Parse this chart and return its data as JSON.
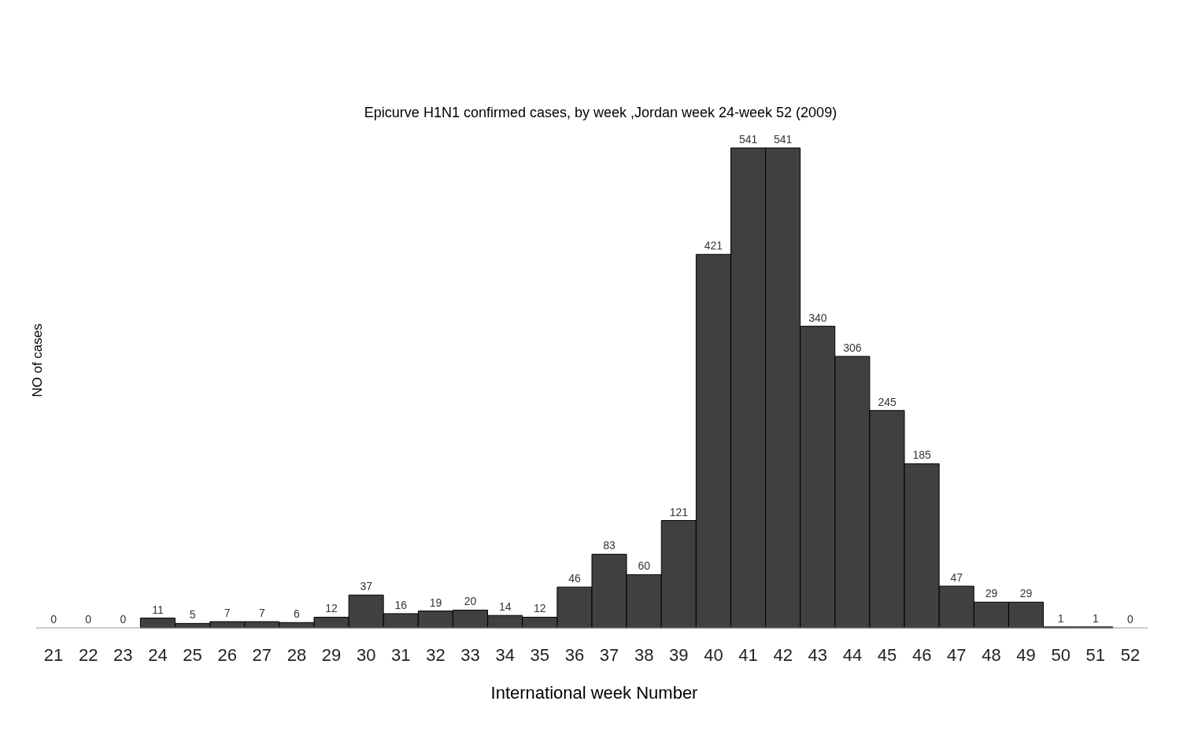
{
  "chart_data": {
    "type": "bar",
    "title": "Epicurve H1N1 confirmed cases, by week ,Jordan week 24-week 52 (2009)",
    "xlabel": "International week Number",
    "ylabel": "NO of cases",
    "categories": [
      "21",
      "22",
      "23",
      "24",
      "25",
      "26",
      "27",
      "28",
      "29",
      "30",
      "31",
      "32",
      "33",
      "34",
      "35",
      "36",
      "37",
      "38",
      "39",
      "40",
      "41",
      "42",
      "43",
      "44",
      "45",
      "46",
      "47",
      "48",
      "49",
      "50",
      "51",
      "52"
    ],
    "values": [
      0,
      0,
      0,
      11,
      5,
      7,
      7,
      6,
      12,
      37,
      16,
      19,
      20,
      14,
      12,
      46,
      83,
      60,
      121,
      421,
      541,
      541,
      340,
      306,
      245,
      185,
      47,
      29,
      29,
      1,
      1,
      0
    ],
    "color": "#404040",
    "data_labels": true,
    "grid": false
  }
}
